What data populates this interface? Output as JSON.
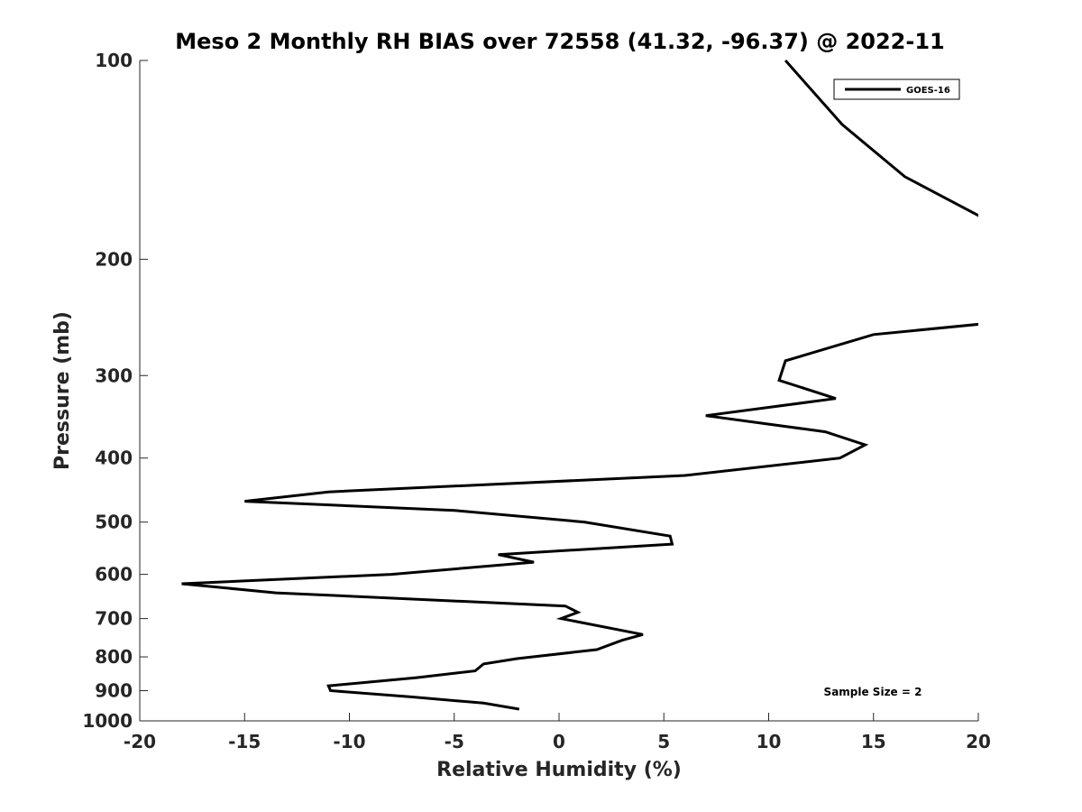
{
  "chart_data": {
    "type": "line",
    "title": "Meso 2 Monthly RH BIAS over 72558 (41.32, -96.37) @ 2022-11",
    "xlabel": "Relative Humidity (%)",
    "ylabel": "Pressure (mb)",
    "xlim": [
      -20,
      20
    ],
    "ylim": [
      100,
      1000
    ],
    "y_scale": "log",
    "y_reversed": true,
    "x_ticks": [
      -20,
      -15,
      -10,
      -5,
      0,
      5,
      10,
      15,
      20
    ],
    "y_ticks": [
      100,
      200,
      300,
      400,
      500,
      600,
      700,
      800,
      900,
      1000
    ],
    "grid": false,
    "legend_position": "top-right",
    "annotation": "Sample Size = 2",
    "series": [
      {
        "name": "GOES-16",
        "color": "#000000",
        "segments": [
          [
            {
              "x": 10.8,
              "y": 100
            },
            {
              "x": 13.5,
              "y": 125
            },
            {
              "x": 16.5,
              "y": 150
            },
            {
              "x": 20.5,
              "y": 175
            }
          ],
          [
            {
              "x": 20.5,
              "y": 250
            },
            {
              "x": 15.0,
              "y": 260
            },
            {
              "x": 10.8,
              "y": 285
            },
            {
              "x": 10.5,
              "y": 305
            },
            {
              "x": 13.2,
              "y": 325
            },
            {
              "x": 7.0,
              "y": 345
            },
            {
              "x": 12.7,
              "y": 365
            },
            {
              "x": 14.6,
              "y": 382
            },
            {
              "x": 13.4,
              "y": 400
            },
            {
              "x": 6.0,
              "y": 425
            },
            {
              "x": -11.0,
              "y": 450
            },
            {
              "x": -15.0,
              "y": 465
            },
            {
              "x": -5.0,
              "y": 480
            },
            {
              "x": 1.2,
              "y": 500
            },
            {
              "x": 5.3,
              "y": 525
            },
            {
              "x": 5.4,
              "y": 540
            },
            {
              "x": -2.9,
              "y": 560
            },
            {
              "x": -1.2,
              "y": 575
            },
            {
              "x": -8.0,
              "y": 600
            },
            {
              "x": -18.0,
              "y": 620
            },
            {
              "x": -13.5,
              "y": 640
            },
            {
              "x": 0.3,
              "y": 670
            },
            {
              "x": 0.9,
              "y": 685
            },
            {
              "x": 0.1,
              "y": 700
            },
            {
              "x": 4.0,
              "y": 740
            },
            {
              "x": 3.0,
              "y": 755
            },
            {
              "x": 1.8,
              "y": 780
            },
            {
              "x": -2.0,
              "y": 805
            },
            {
              "x": -3.6,
              "y": 820
            },
            {
              "x": -4.0,
              "y": 840
            },
            {
              "x": -6.8,
              "y": 860
            },
            {
              "x": -11.0,
              "y": 885
            },
            {
              "x": -10.9,
              "y": 900
            },
            {
              "x": -7.0,
              "y": 920
            },
            {
              "x": -3.6,
              "y": 940
            },
            {
              "x": -1.9,
              "y": 960
            }
          ]
        ]
      }
    ]
  }
}
